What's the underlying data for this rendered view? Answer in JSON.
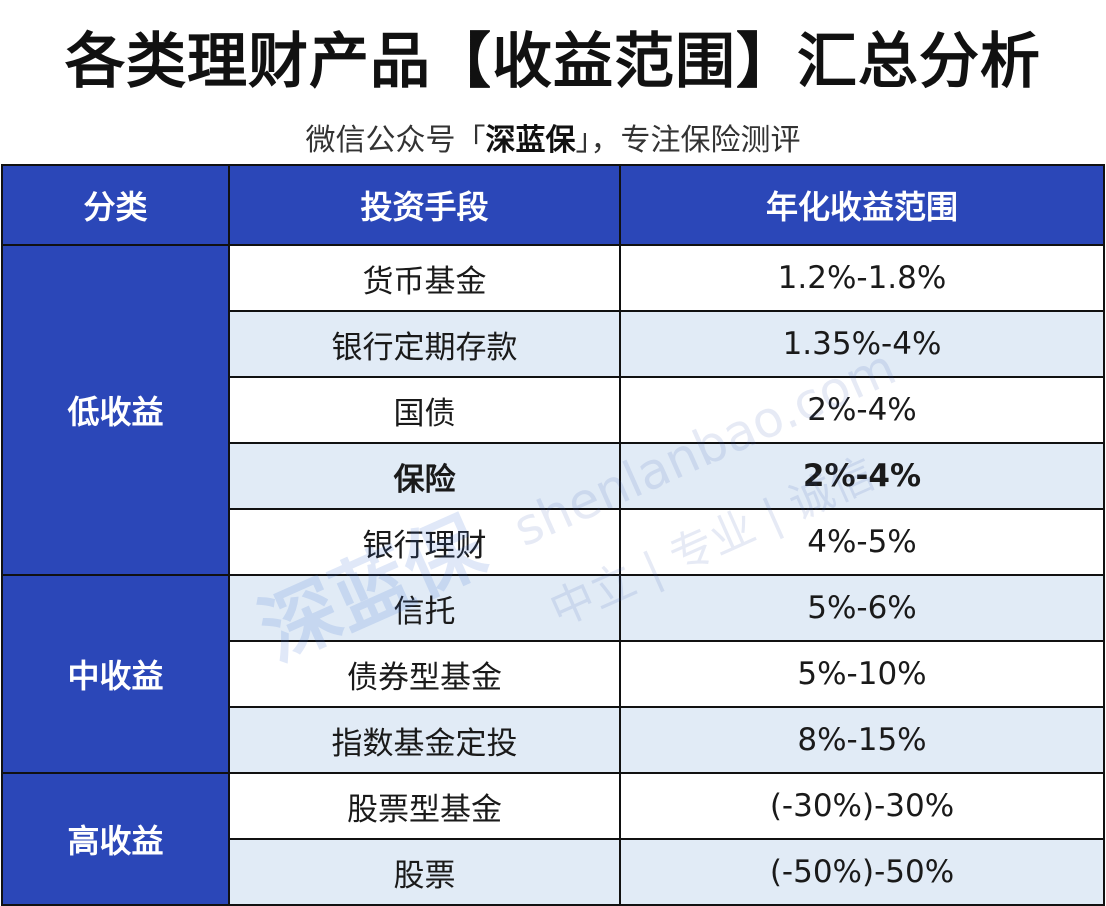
{
  "title": "各类理财产品【收益范围】汇总分析",
  "subtitle": {
    "prefix": "微信公众号「",
    "brand": "深蓝保",
    "suffix": "」，专注保险测评"
  },
  "headers": {
    "category": "分类",
    "method": "投资手段",
    "range": "年化收益范围"
  },
  "groups": [
    {
      "category": "低收益",
      "rows": [
        {
          "method": "货币基金",
          "range": "1.2%-1.8%"
        },
        {
          "method": "银行定期存款",
          "range": "1.35%-4%"
        },
        {
          "method": "国债",
          "range": "2%-4%"
        },
        {
          "method": "保险",
          "range": "2%-4%",
          "highlight": true
        },
        {
          "method": "银行理财",
          "range": "4%-5%"
        }
      ]
    },
    {
      "category": "中收益",
      "rows": [
        {
          "method": "信托",
          "range": "5%-6%"
        },
        {
          "method": "债券型基金",
          "range": "5%-10%"
        },
        {
          "method": "指数基金定投",
          "range": "8%-15%"
        }
      ]
    },
    {
      "category": "高收益",
      "rows": [
        {
          "method": "股票型基金",
          "range": "(-30%)-30%"
        },
        {
          "method": "股票",
          "range": "(-50%)-50%"
        }
      ]
    }
  ],
  "watermark": {
    "logo": "深蓝保",
    "domain": "shenlanbao.com",
    "slogan": "中立 | 专业 | 诚信"
  },
  "colors": {
    "header_bg": "#2b47b8",
    "category_bg": "#2b47b8",
    "stripe_bg": "#e1ebf6",
    "border": "#111111"
  }
}
